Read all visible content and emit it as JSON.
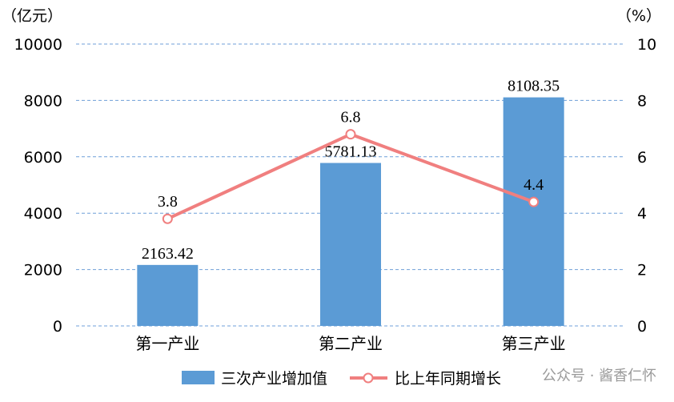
{
  "chart_data": {
    "type": "bar",
    "categories": [
      "第一产业",
      "第二产业",
      "第三产业"
    ],
    "y_left_unit": "（亿元）",
    "y_right_unit": "（%）",
    "ylim_left": [
      0,
      10000
    ],
    "yticks_left": [
      "0",
      "2000",
      "4000",
      "6000",
      "8000",
      "10000"
    ],
    "ylim_right": [
      0,
      10
    ],
    "yticks_right": [
      "0",
      "2",
      "4",
      "6",
      "8",
      "10"
    ],
    "grid": true,
    "legend_position": "bottom",
    "series": [
      {
        "name": "三次产业增加值",
        "type": "bar",
        "axis": "left",
        "color": "#5b9bd5",
        "values": [
          2163.42,
          5781.13,
          8108.35
        ],
        "labels": [
          "2163.42",
          "5781.13",
          "8108.35"
        ]
      },
      {
        "name": "比上年同期增长",
        "type": "line",
        "axis": "right",
        "color": "#f07f7f",
        "values": [
          3.8,
          6.8,
          4.4
        ],
        "labels": [
          "3.8",
          "6.8",
          "4.4"
        ]
      }
    ]
  },
  "watermark": "公众号 · 酱香仁怀"
}
